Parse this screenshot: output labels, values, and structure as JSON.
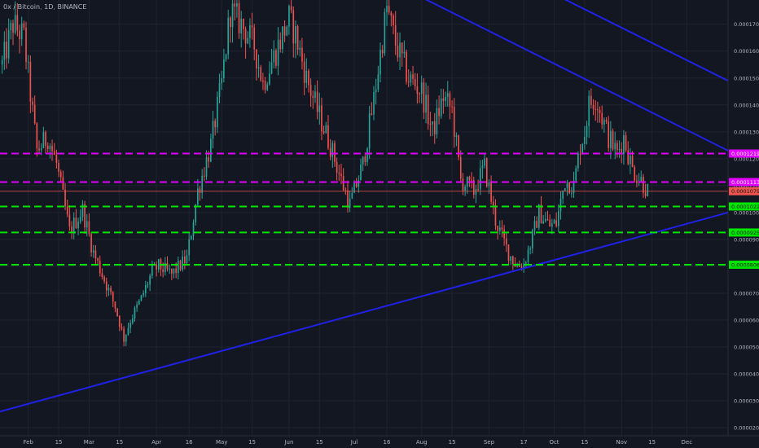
{
  "header": {
    "symbol": "0x / Bitcoin",
    "interval": "1D",
    "exchange": "BINANCE"
  },
  "colors": {
    "background": "#131722",
    "up": "#26a69a",
    "down": "#ef5350",
    "trendline": "#2121e6",
    "resistance": "#e100ff",
    "support": "#00e600"
  },
  "chart_data": {
    "type": "candlestick",
    "yscale": "linear",
    "ylim": [
      1.7e-05,
      0.000179
    ],
    "y_ticks": [
      "0.00017000",
      "0.00016000",
      "0.00015000",
      "0.00014000",
      "0.00013000",
      "0.00012000",
      "0.00011000",
      "0.00010000",
      "0.00009000",
      "0.00008000",
      "0.00007000",
      "0.00006000",
      "0.00005000",
      "0.00004000",
      "0.00003000",
      "0.00002000"
    ],
    "y_tick_values": [
      0.00017,
      0.00016,
      0.00015,
      0.00014,
      0.00013,
      0.00012,
      0.00011,
      0.0001,
      9e-05,
      8e-05,
      7e-05,
      6e-05,
      5e-05,
      4e-05,
      3e-05,
      2e-05
    ],
    "x_ticks": [
      "Feb",
      "15",
      "Mar",
      "15",
      "Apr",
      "16",
      "May",
      "15",
      "Jun",
      "15",
      "Jul",
      "16",
      "Aug",
      "15",
      "Sep",
      "17",
      "Oct",
      "15",
      "Nov",
      "15",
      "Dec"
    ],
    "x_tick_dates": [
      "2018-02-01",
      "2018-02-15",
      "2018-03-01",
      "2018-03-15",
      "2018-04-01",
      "2018-04-16",
      "2018-05-01",
      "2018-05-15",
      "2018-06-01",
      "2018-06-15",
      "2018-07-01",
      "2018-07-16",
      "2018-08-01",
      "2018-08-15",
      "2018-09-01",
      "2018-09-17",
      "2018-10-01",
      "2018-10-15",
      "2018-11-01",
      "2018-11-15",
      "2018-12-01"
    ],
    "x_range": [
      "2018-01-19",
      "2018-12-20"
    ],
    "last_candle_date": "2018-11-13",
    "price_path": [
      [
        "2018-01-20",
        0.000155
      ],
      [
        "2018-01-25",
        0.00017
      ],
      [
        "2018-01-30",
        0.000165
      ],
      [
        "2018-02-05",
        0.000123
      ],
      [
        "2018-02-10",
        0.000128
      ],
      [
        "2018-02-14",
        0.000118
      ],
      [
        "2018-02-20",
        9.3e-05
      ],
      [
        "2018-02-26",
        0.000101
      ],
      [
        "2018-03-03",
        8.5e-05
      ],
      [
        "2018-03-08",
        7.5e-05
      ],
      [
        "2018-03-13",
        6.5e-05
      ],
      [
        "2018-03-17",
        5.3e-05
      ],
      [
        "2018-03-20",
        6e-05
      ],
      [
        "2018-03-25",
        6.8e-05
      ],
      [
        "2018-03-30",
        7.8e-05
      ],
      [
        "2018-04-02",
        8e-05
      ],
      [
        "2018-04-08",
        7.7e-05
      ],
      [
        "2018-04-15",
        8.3e-05
      ],
      [
        "2018-04-20",
        0.000108
      ],
      [
        "2018-04-26",
        0.000125
      ],
      [
        "2018-05-01",
        0.000148
      ],
      [
        "2018-05-05",
        0.000175
      ],
      [
        "2018-05-10",
        0.00017
      ],
      [
        "2018-05-16",
        0.000162
      ],
      [
        "2018-05-20",
        0.000148
      ],
      [
        "2018-05-26",
        0.00016
      ],
      [
        "2018-06-01",
        0.000172
      ],
      [
        "2018-06-04",
        0.000166
      ],
      [
        "2018-06-09",
        0.00015
      ],
      [
        "2018-06-14",
        0.000138
      ],
      [
        "2018-06-20",
        0.000125
      ],
      [
        "2018-06-25",
        0.000112
      ],
      [
        "2018-06-29",
        0.000103
      ],
      [
        "2018-07-05",
        0.000118
      ],
      [
        "2018-07-10",
        0.000142
      ],
      [
        "2018-07-16",
        0.000176
      ],
      [
        "2018-07-20",
        0.000163
      ],
      [
        "2018-07-26",
        0.00015
      ],
      [
        "2018-08-01",
        0.000145
      ],
      [
        "2018-08-06",
        0.00013
      ],
      [
        "2018-08-11",
        0.000143
      ],
      [
        "2018-08-15",
        0.000138
      ],
      [
        "2018-08-19",
        0.000112
      ],
      [
        "2018-08-25",
        0.000108
      ],
      [
        "2018-08-30",
        0.000117
      ],
      [
        "2018-09-04",
        9.7e-05
      ],
      [
        "2018-09-10",
        8.5e-05
      ],
      [
        "2018-09-14",
        8e-05
      ],
      [
        "2018-09-17",
        8.1e-05
      ],
      [
        "2018-09-20",
        8.8e-05
      ],
      [
        "2018-09-24",
        0.0001
      ],
      [
        "2018-09-29",
        9.5e-05
      ],
      [
        "2018-10-02",
        9.6e-05
      ],
      [
        "2018-10-06",
        0.000112
      ],
      [
        "2018-10-10",
        0.00011
      ],
      [
        "2018-10-13",
        0.000125
      ],
      [
        "2018-10-15",
        0.00013
      ],
      [
        "2018-10-17",
        0.00014
      ],
      [
        "2018-10-20",
        0.000143
      ],
      [
        "2018-10-22",
        0.000138
      ],
      [
        "2018-10-26",
        0.000128
      ],
      [
        "2018-10-30",
        0.000122
      ],
      [
        "2018-11-02",
        0.000128
      ],
      [
        "2018-11-06",
        0.000116
      ],
      [
        "2018-11-10",
        0.000112
      ],
      [
        "2018-11-13",
        0.000108
      ]
    ],
    "horizontal_levels": [
      {
        "value": 0.00012193,
        "label": "0.00012193",
        "style": "dashed",
        "color": "#e100ff"
      },
      {
        "value": 0.00011133,
        "label": "0.00011133",
        "style": "dashed",
        "color": "#e100ff"
      },
      {
        "value": 0.00010793,
        "label": "0.00010793",
        "style": "solid-thin",
        "color": "#ef5350"
      },
      {
        "value": 0.00010225,
        "label": "0.00010225",
        "style": "dashed",
        "color": "#00e600"
      },
      {
        "value": 9.257e-05,
        "label": "0.00009257",
        "style": "dashed",
        "color": "#00e600"
      },
      {
        "value": 8.06e-05,
        "label": "0.00008060",
        "style": "dashed",
        "color": "#00e600"
      }
    ],
    "trendlines": [
      {
        "name": "lower-support",
        "from": [
          "2018-01-19",
          2.6e-05
        ],
        "to": [
          "2018-12-20",
          0.0001
        ]
      },
      {
        "name": "upper-resistance",
        "from": [
          "2018-07-27",
          0.000182
        ],
        "to": [
          "2018-12-20",
          0.000123
        ]
      },
      {
        "name": "outer-resistance",
        "from": [
          "2018-09-29",
          0.000182
        ],
        "to": [
          "2018-12-20",
          0.000149
        ]
      }
    ]
  }
}
